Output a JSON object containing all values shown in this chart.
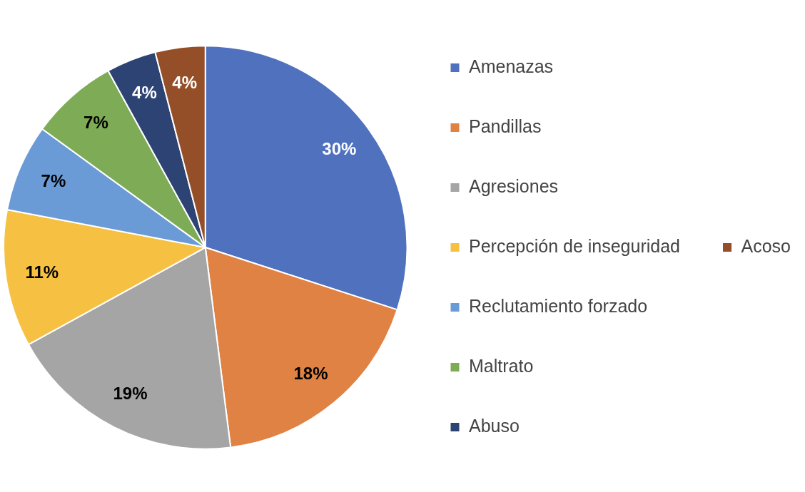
{
  "chart_data": {
    "type": "pie",
    "categories": [
      "Amenazas",
      "Pandillas",
      "Agresiones",
      "Percepción de inseguridad",
      "Reclutamiento forzado",
      "Maltrato",
      "Abuso",
      "Acoso"
    ],
    "values": [
      30,
      18,
      19,
      11,
      7,
      7,
      4,
      4
    ],
    "colors": [
      "#4f71be",
      "#df8244",
      "#a5a5a5",
      "#f6c143",
      "#6a9bd6",
      "#7eab55",
      "#2d4374",
      "#954f28"
    ],
    "value_labels": [
      "30%",
      "18%",
      "19%",
      "11%",
      "7%",
      "7%",
      "4%",
      "4%"
    ],
    "legend": "right"
  }
}
